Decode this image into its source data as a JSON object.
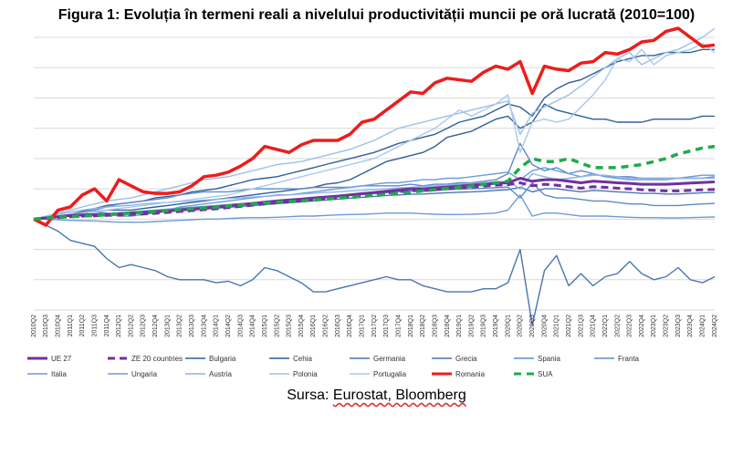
{
  "title": "Figura 1: Evoluția în termeni reali a nivelului productivității muncii pe oră lucrată (2010=100)",
  "source": {
    "prefix": "Sursa: ",
    "text": "Eurostat, Bloomberg"
  },
  "chart_data": {
    "type": "line",
    "grid": true,
    "legend_position": "bottom",
    "ylim": [
      70,
      160
    ],
    "categories": [
      "2010Q2",
      "2010Q3",
      "2010Q4",
      "2011Q1",
      "2011Q2",
      "2011Q3",
      "2011Q4",
      "2012Q1",
      "2012Q2",
      "2012Q3",
      "2012Q4",
      "2013Q1",
      "2013Q2",
      "2013Q3",
      "2013Q4",
      "2014Q1",
      "2014Q2",
      "2014Q3",
      "2014Q4",
      "2015Q1",
      "2015Q2",
      "2015Q3",
      "2015Q4",
      "2016Q1",
      "2016Q2",
      "2016Q3",
      "2016Q4",
      "2017Q1",
      "2017Q2",
      "2017Q3",
      "2017Q4",
      "2018Q1",
      "2018Q2",
      "2018Q3",
      "2018Q4",
      "2019Q1",
      "2019Q2",
      "2019Q3",
      "2019Q4",
      "2020Q1",
      "2020Q2",
      "2020Q3",
      "2020Q4",
      "2021Q1",
      "2021Q2",
      "2021Q3",
      "2021Q4",
      "2022Q1",
      "2022Q2",
      "2022Q3",
      "2022Q4",
      "2023Q1",
      "2023Q2",
      "2023Q3",
      "2023Q4",
      "2024Q1",
      "2024Q2"
    ],
    "series": [
      {
        "name": "UE 27",
        "color": "#7030a0",
        "width": 3,
        "dash": "",
        "values": [
          100,
          100.4,
          100.8,
          101.2,
          101.4,
          101.5,
          101.6,
          101.8,
          102,
          102.2,
          102.4,
          102.7,
          103,
          103.3,
          103.6,
          104,
          104.4,
          104.8,
          105.2,
          105.6,
          106,
          106.3,
          106.6,
          107,
          107.3,
          107.6,
          108,
          108.4,
          108.8,
          109.2,
          109.6,
          110,
          110,
          110.3,
          110.6,
          110.9,
          111.2,
          111.5,
          111.8,
          112,
          113.5,
          112.5,
          113,
          113,
          112.5,
          112,
          112.5,
          112.3,
          112,
          111.8,
          111.5,
          111.5,
          111.5,
          111.7,
          111.9,
          112.1,
          112.3
        ]
      },
      {
        "name": "ZE 20 countries",
        "color": "#7030a0",
        "width": 3,
        "dash": "8,5",
        "values": [
          100,
          100.2,
          100.5,
          100.8,
          101,
          101.1,
          101.2,
          101.3,
          101.5,
          101.7,
          101.9,
          102.2,
          102.5,
          102.8,
          103.1,
          103.4,
          103.8,
          104.2,
          104.6,
          105,
          105.4,
          105.7,
          106,
          106.4,
          106.7,
          107,
          107.4,
          107.8,
          108.2,
          108.6,
          109,
          109.4,
          109.4,
          109.7,
          110,
          110.3,
          110.6,
          110.9,
          111.2,
          111.4,
          112,
          111,
          111.5,
          111.2,
          110.7,
          110.2,
          110.7,
          110.5,
          110.2,
          110,
          109.7,
          109.5,
          109.3,
          109.3,
          109.5,
          109.7,
          109.8
        ]
      },
      {
        "name": "Bulgaria",
        "color": "#2f5f98",
        "width": 1.4,
        "dash": "",
        "values": [
          100,
          100.5,
          101,
          101.5,
          102.5,
          103.5,
          104.5,
          105,
          105.5,
          106,
          107,
          107.5,
          108,
          109,
          109.5,
          110,
          111,
          112,
          113,
          113.5,
          114,
          115,
          116,
          117,
          118,
          119,
          120,
          121,
          122,
          123.5,
          125,
          126,
          127,
          128,
          130,
          132,
          133,
          134,
          136,
          138,
          137,
          134,
          140,
          143,
          145,
          146,
          148,
          150,
          152,
          153,
          154,
          154,
          155,
          155,
          155,
          156,
          156
        ]
      },
      {
        "name": "Cehia",
        "color": "#2f5f98",
        "width": 1.4,
        "dash": "",
        "values": [
          100,
          100.5,
          101,
          101.5,
          102,
          102.5,
          103,
          103,
          103,
          103.5,
          104,
          104.5,
          105,
          105.5,
          106,
          106.5,
          107,
          107.5,
          108,
          108.5,
          109,
          109.5,
          110,
          110.5,
          111.5,
          112,
          113,
          115,
          117,
          119,
          120,
          121,
          122,
          124,
          127,
          128,
          129,
          131,
          133,
          134,
          130,
          132,
          138,
          136,
          135,
          134,
          133,
          133,
          132,
          132,
          132,
          133,
          133,
          133,
          133,
          134,
          134
        ]
      },
      {
        "name": "Germania",
        "color": "#4a75b0",
        "width": 1.4,
        "dash": "",
        "values": [
          100,
          100.3,
          100.6,
          101,
          101.2,
          101.4,
          101.6,
          101.8,
          102,
          102.2,
          102.4,
          102.6,
          102.8,
          103,
          103.3,
          103.6,
          103.9,
          104.2,
          104.5,
          104.8,
          105.1,
          105.4,
          105.7,
          106,
          106.3,
          106.6,
          106.9,
          107.2,
          107.5,
          107.8,
          108,
          108.2,
          108.3,
          108.5,
          108.7,
          108.9,
          109,
          109.2,
          109.5,
          109.7,
          110.5,
          109,
          110,
          110,
          109.5,
          109,
          109.5,
          109.3,
          109,
          108.8,
          108.5,
          108.5,
          108.3,
          108.3,
          108.5,
          108.7,
          108.8
        ]
      },
      {
        "name": "Grecia",
        "color": "#4a75b0",
        "width": 1.4,
        "dash": "",
        "values": [
          100,
          98,
          96,
          93,
          92,
          91,
          87,
          84,
          85,
          84,
          83,
          81,
          80,
          80,
          80,
          79,
          79.5,
          78,
          80,
          84,
          83,
          81,
          79,
          76,
          76,
          77,
          78,
          79,
          80,
          81,
          80,
          80,
          78,
          77,
          76,
          76,
          76,
          77,
          77,
          79,
          90,
          65,
          83,
          88,
          78,
          82,
          78,
          81,
          82,
          86,
          82,
          80,
          81,
          84,
          80,
          79,
          81
        ]
      },
      {
        "name": "Spania",
        "color": "#5b8bc9",
        "width": 1.4,
        "dash": "",
        "values": [
          100,
          100.5,
          101,
          101.5,
          102,
          103,
          104,
          105,
          105.5,
          106,
          106.5,
          107,
          108,
          108.5,
          109,
          109,
          109,
          109.5,
          110,
          110,
          110,
          110,
          110,
          110.5,
          110.5,
          110.5,
          110.5,
          111,
          111,
          111,
          111,
          111.5,
          111,
          111.5,
          111.5,
          112,
          112,
          112.5,
          113,
          115,
          125,
          118,
          116,
          117,
          115,
          116,
          115,
          114,
          114,
          114,
          113.5,
          113.5,
          113.5,
          113.5,
          113.5,
          113.5,
          114
        ]
      },
      {
        "name": "Franta",
        "color": "#5b8bc9",
        "width": 1.4,
        "dash": "",
        "values": [
          100,
          100.3,
          100.6,
          100.9,
          101.2,
          101.5,
          101.8,
          102.1,
          102.4,
          102.7,
          103,
          103.3,
          103.6,
          103.9,
          104.2,
          104.5,
          104.8,
          105.1,
          105.4,
          105.7,
          106,
          106.3,
          106.6,
          106.9,
          107.2,
          107.5,
          107.8,
          108.1,
          108.4,
          108.7,
          109,
          109.3,
          109.3,
          109.5,
          109.7,
          109.9,
          110,
          110.2,
          110.4,
          110.6,
          107,
          112,
          108,
          107,
          107,
          106.5,
          106,
          106,
          105.5,
          105,
          105,
          104.5,
          104.5,
          104.5,
          104.8,
          105,
          105.2
        ]
      },
      {
        "name": "Italia",
        "color": "#6f9bd8",
        "width": 1.4,
        "dash": "",
        "values": [
          100,
          100,
          99.8,
          99.6,
          99.5,
          99.4,
          99.2,
          99,
          99,
          99,
          99.2,
          99.4,
          99.6,
          99.8,
          100,
          100,
          100.2,
          100.4,
          100.5,
          100.5,
          100.6,
          100.8,
          101,
          101,
          101.2,
          101.4,
          101.5,
          101.6,
          101.8,
          102,
          102,
          102,
          101.8,
          101.6,
          101.5,
          101.5,
          101.6,
          101.8,
          102,
          103,
          108,
          101,
          102,
          102,
          101.5,
          101,
          101,
          101,
          100.8,
          100.6,
          100.5,
          100.5,
          100.4,
          100.4,
          100.5,
          100.6,
          100.7
        ]
      },
      {
        "name": "Ungaria",
        "color": "#6f9bd8",
        "width": 1.4,
        "dash": "",
        "values": [
          100,
          100.5,
          101,
          101.5,
          102,
          102.5,
          102,
          101,
          101,
          101.5,
          102,
          103,
          104,
          104.5,
          105,
          105.5,
          106,
          106.5,
          107,
          107.5,
          108,
          108,
          108.5,
          109,
          109.5,
          110,
          110.5,
          111,
          111.5,
          112,
          112,
          112.5,
          113,
          113,
          113.5,
          113.5,
          114,
          114.5,
          115,
          115.5,
          113,
          116,
          117,
          116,
          115,
          114,
          115,
          114,
          113.5,
          113,
          113,
          113,
          113,
          113.5,
          114,
          114.5,
          114.5
        ]
      },
      {
        "name": "Austria",
        "color": "#8fb4e3",
        "width": 1.4,
        "dash": "",
        "values": [
          100,
          100.8,
          101.6,
          102.3,
          103,
          103.5,
          104,
          104.3,
          104.6,
          105,
          105.3,
          105.5,
          105.8,
          106,
          106.3,
          106.5,
          106.8,
          107,
          107.3,
          107.5,
          107.8,
          108,
          108.3,
          108.5,
          108.8,
          109,
          109.3,
          109.5,
          109.8,
          110,
          110.3,
          110.5,
          110.8,
          111,
          111.3,
          111.5,
          111.8,
          112,
          112.3,
          112.5,
          110,
          115,
          114,
          113,
          113.5,
          114,
          114.5,
          114.5,
          114,
          113.5,
          113.5,
          113.5,
          113.5,
          113.5,
          113.5,
          113.5,
          113.5
        ]
      },
      {
        "name": "Polonia",
        "color": "#9dbfe8",
        "width": 1.4,
        "dash": "",
        "values": [
          100,
          101,
          102,
          103,
          104,
          105,
          106,
          106.5,
          107,
          108,
          109,
          110,
          111,
          112,
          113,
          113.5,
          114,
          115,
          116,
          117,
          118,
          118.5,
          119,
          120,
          121,
          122,
          123,
          124.5,
          126,
          128,
          130,
          131,
          132,
          133,
          134,
          135,
          136,
          137,
          138,
          139,
          128,
          135,
          137,
          139,
          141,
          144,
          147,
          150,
          153,
          155,
          151,
          153,
          155,
          156,
          158,
          160,
          163
        ]
      },
      {
        "name": "Portugalia",
        "color": "#a9c8ec",
        "width": 1.4,
        "dash": "",
        "values": [
          100,
          100.5,
          101,
          101.5,
          102,
          102.5,
          103,
          103.5,
          104,
          104.5,
          105,
          105.5,
          106,
          106.5,
          107,
          107.5,
          108,
          109,
          110,
          111,
          112,
          113,
          114,
          115,
          116,
          117,
          118,
          119,
          120,
          122,
          124,
          126,
          128,
          130,
          133,
          136,
          134,
          136,
          138,
          141,
          122,
          132,
          133,
          132,
          133,
          137,
          141,
          146,
          153,
          152,
          156,
          151,
          154,
          155,
          156,
          158,
          155
        ]
      },
      {
        "name": "Romania",
        "color": "#ee1c1c",
        "width": 3.5,
        "dash": "",
        "values": [
          100,
          98,
          103,
          104,
          108,
          110,
          106,
          113,
          111,
          109,
          108.5,
          108.5,
          109,
          111,
          114,
          114.5,
          115.5,
          117.5,
          120,
          124,
          123,
          122,
          124.5,
          126,
          126,
          126,
          128,
          132,
          133,
          136,
          139,
          142,
          141.5,
          145,
          146.5,
          146,
          145.5,
          148.5,
          150.5,
          149.5,
          152,
          141.5,
          150.5,
          149.5,
          149,
          151.5,
          152,
          155,
          154.5,
          156,
          158.5,
          159,
          162,
          163,
          160,
          157,
          157.5
        ]
      },
      {
        "name": "SUA",
        "color": "#1faa4b",
        "width": 3.5,
        "dash": "8,6",
        "values": [
          100,
          100.3,
          100.6,
          100.8,
          101,
          101.2,
          101.4,
          101.7,
          102,
          102.3,
          102.5,
          102.8,
          103.1,
          103.4,
          103.7,
          104,
          104.3,
          104.6,
          105,
          105.3,
          105.6,
          105.8,
          106,
          106.3,
          106.6,
          106.9,
          107.2,
          107.5,
          107.8,
          108.1,
          108.5,
          108.9,
          109.3,
          109.7,
          110.1,
          110.5,
          110.9,
          111.5,
          112,
          112.5,
          117,
          120,
          119,
          119,
          120,
          118.5,
          117,
          117,
          117,
          117.5,
          118,
          119,
          120,
          121.5,
          122.5,
          123.5,
          124
        ]
      }
    ]
  }
}
